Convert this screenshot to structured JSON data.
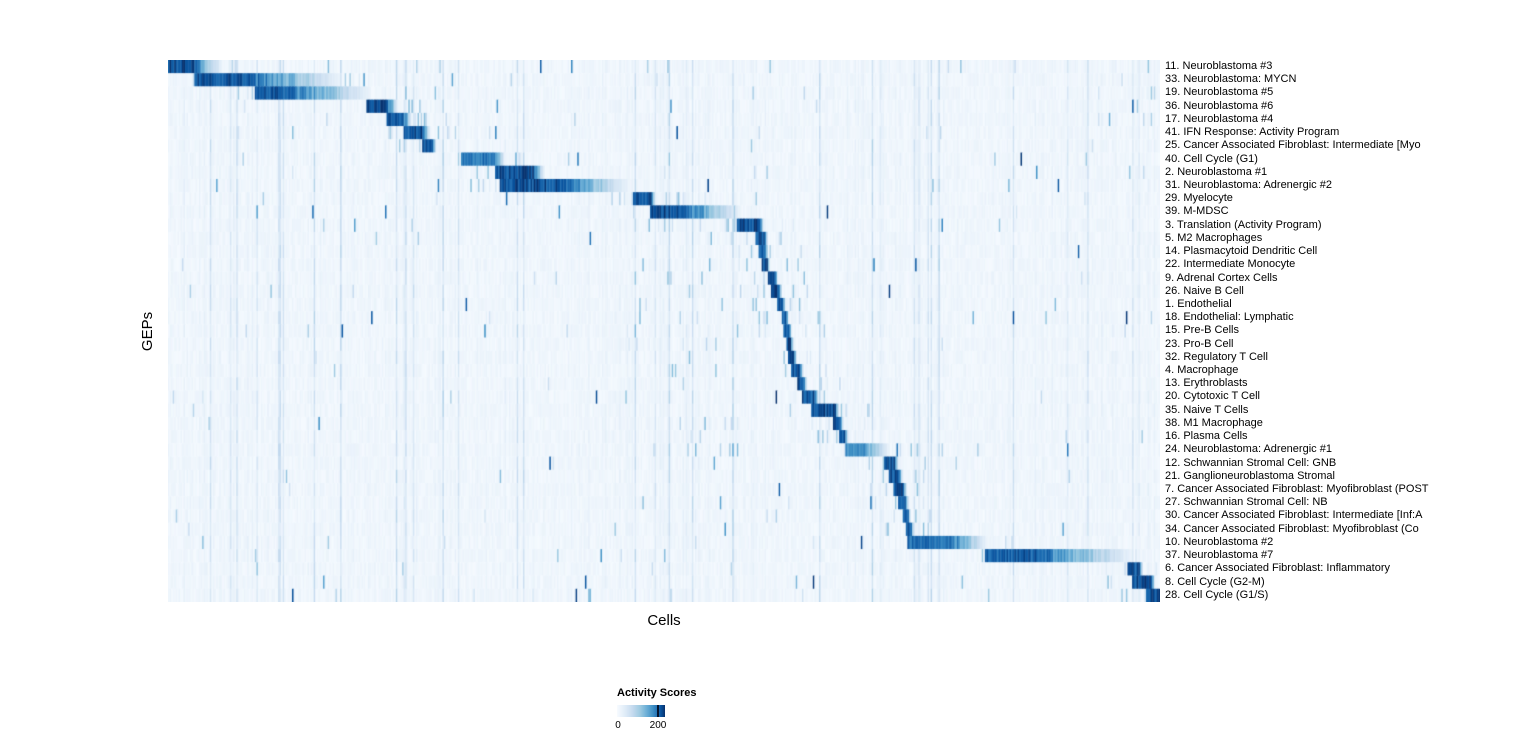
{
  "chart_data": {
    "type": "heatmap",
    "title": "",
    "xlabel": "Cells",
    "ylabel": "GEPs",
    "legend": {
      "title": "Activity Scores",
      "min_label": "0",
      "max_label": "200",
      "min": 0,
      "max": 200,
      "position": "bottom-left"
    },
    "colormap": {
      "name": "Blues",
      "low": "#f7fbff",
      "mid": "#4292c6",
      "high": "#08306b"
    },
    "grid": false,
    "n_rows": 41,
    "x_axis_ticks": "none (individual cells)",
    "rows": [
      {
        "label": "11. Neuroblastoma #3",
        "start": 0.0,
        "dark": 0.027,
        "tail": 0.055,
        "peak": 1.0,
        "noise": 2
      },
      {
        "label": "33. Neuroblastoma: MYCN",
        "start": 0.027,
        "dark": 0.088,
        "tail": 0.175,
        "peak": 1.0,
        "noise": 1
      },
      {
        "label": "19. Neuroblastoma #5",
        "start": 0.088,
        "dark": 0.128,
        "tail": 0.205,
        "peak": 0.95,
        "noise": 1
      },
      {
        "label": "36. Neuroblastoma #6",
        "start": 0.2,
        "dark": 0.222,
        "tail": 0.232,
        "peak": 1.0,
        "noise": 1
      },
      {
        "label": "17. Neuroblastoma #4",
        "start": 0.22,
        "dark": 0.238,
        "tail": 0.246,
        "peak": 0.95,
        "noise": 1
      },
      {
        "label": "41. IFN Response: Activity Program",
        "start": 0.238,
        "dark": 0.258,
        "tail": 0.264,
        "peak": 1.0,
        "noise": 2.5
      },
      {
        "label": "25. Cancer Associated Fibroblast: Intermediate [Myo",
        "start": 0.257,
        "dark": 0.267,
        "tail": 0.271,
        "peak": 1.0,
        "noise": 1
      },
      {
        "label": "40. Cell Cycle (G1)",
        "start": 0.296,
        "dark": 0.33,
        "tail": 0.34,
        "peak": 0.85,
        "noise": 3
      },
      {
        "label": "2. Neuroblastoma #1",
        "start": 0.33,
        "dark": 0.368,
        "tail": 0.38,
        "peak": 1.0,
        "noise": 1
      },
      {
        "label": "31. Neuroblastoma: Adrenergic #2",
        "start": 0.335,
        "dark": 0.4,
        "tail": 0.466,
        "peak": 1.0,
        "noise": 1
      },
      {
        "label": "29. Myelocyte",
        "start": 0.468,
        "dark": 0.487,
        "tail": 0.492,
        "peak": 1.0,
        "noise": 1
      },
      {
        "label": "39. M-MDSC",
        "start": 0.486,
        "dark": 0.524,
        "tail": 0.578,
        "peak": 1.0,
        "noise": 1.5
      },
      {
        "label": "3. Translation (Activity Program)",
        "start": 0.574,
        "dark": 0.597,
        "tail": 0.601,
        "peak": 1.0,
        "noise": 2.5
      },
      {
        "label": "5. M2 Macrophages",
        "start": 0.592,
        "dark": 0.602,
        "tail": 0.605,
        "peak": 1.0,
        "noise": 1
      },
      {
        "label": "14. Plasmacytoid Dendritic Cell",
        "start": 0.596,
        "dark": 0.602,
        "tail": 0.605,
        "peak": 1.0,
        "noise": 1
      },
      {
        "label": "22. Intermediate Monocyte",
        "start": 0.598,
        "dark": 0.604,
        "tail": 0.607,
        "peak": 1.0,
        "noise": 1
      },
      {
        "label": "9. Adrenal Cortex Cells",
        "start": 0.604,
        "dark": 0.612,
        "tail": 0.615,
        "peak": 1.0,
        "noise": 1
      },
      {
        "label": "26. Naive B Cell",
        "start": 0.608,
        "dark": 0.616,
        "tail": 0.619,
        "peak": 1.0,
        "noise": 1
      },
      {
        "label": "1. Endothelial",
        "start": 0.614,
        "dark": 0.62,
        "tail": 0.623,
        "peak": 1.0,
        "noise": 1
      },
      {
        "label": "18. Endothelial: Lymphatic",
        "start": 0.618,
        "dark": 0.623,
        "tail": 0.626,
        "peak": 1.0,
        "noise": 1
      },
      {
        "label": "15. Pre-B Cells",
        "start": 0.621,
        "dark": 0.626,
        "tail": 0.629,
        "peak": 1.0,
        "noise": 1
      },
      {
        "label": "23. Pro-B Cell",
        "start": 0.623,
        "dark": 0.628,
        "tail": 0.631,
        "peak": 1.0,
        "noise": 1
      },
      {
        "label": "32. Regulatory T Cell",
        "start": 0.625,
        "dark": 0.631,
        "tail": 0.634,
        "peak": 1.0,
        "noise": 1
      },
      {
        "label": "4. Macrophage",
        "start": 0.628,
        "dark": 0.637,
        "tail": 0.641,
        "peak": 1.0,
        "noise": 1
      },
      {
        "label": "13. Erythroblasts",
        "start": 0.634,
        "dark": 0.641,
        "tail": 0.644,
        "peak": 1.0,
        "noise": 1
      },
      {
        "label": "20. Cytotoxic T Cell",
        "start": 0.639,
        "dark": 0.652,
        "tail": 0.656,
        "peak": 1.0,
        "noise": 1
      },
      {
        "label": "35. Naive T Cells",
        "start": 0.649,
        "dark": 0.673,
        "tail": 0.677,
        "peak": 1.0,
        "noise": 1
      },
      {
        "label": "38. M1 Macrophage",
        "start": 0.67,
        "dark": 0.678,
        "tail": 0.681,
        "peak": 1.0,
        "noise": 1
      },
      {
        "label": "16. Plasma Cells",
        "start": 0.676,
        "dark": 0.683,
        "tail": 0.686,
        "peak": 1.0,
        "noise": 1
      },
      {
        "label": "24. Neuroblastoma: Adrenergic #1",
        "start": 0.683,
        "dark": 0.702,
        "tail": 0.728,
        "peak": 0.75,
        "noise": 1
      },
      {
        "label": "12. Schwannian Stromal Cell: GNB",
        "start": 0.722,
        "dark": 0.733,
        "tail": 0.737,
        "peak": 1.0,
        "noise": 1
      },
      {
        "label": "21. Ganglioneuroblastoma Stromal",
        "start": 0.726,
        "dark": 0.737,
        "tail": 0.741,
        "peak": 1.0,
        "noise": 1
      },
      {
        "label": "7. Cancer Associated Fibroblast: Myofibroblast (POST",
        "start": 0.732,
        "dark": 0.742,
        "tail": 0.745,
        "peak": 1.0,
        "noise": 1
      },
      {
        "label": "27. Schwannian Stromal Cell: NB",
        "start": 0.736,
        "dark": 0.744,
        "tail": 0.747,
        "peak": 1.0,
        "noise": 1
      },
      {
        "label": "30. Cancer Associated Fibroblast: Intermediate [Inf:A",
        "start": 0.74,
        "dark": 0.746,
        "tail": 0.749,
        "peak": 1.0,
        "noise": 1
      },
      {
        "label": "34. Cancer Associated Fibroblast: Myofibroblast (Co",
        "start": 0.743,
        "dark": 0.749,
        "tail": 0.752,
        "peak": 1.0,
        "noise": 1
      },
      {
        "label": "10. Neuroblastoma #2",
        "start": 0.746,
        "dark": 0.792,
        "tail": 0.826,
        "peak": 0.9,
        "noise": 1.5
      },
      {
        "label": "37. Neuroblastoma #7",
        "start": 0.824,
        "dark": 0.885,
        "tail": 0.974,
        "peak": 0.95,
        "noise": 1.5
      },
      {
        "label": "6. Cancer Associated Fibroblast: Inflammatory",
        "start": 0.967,
        "dark": 0.98,
        "tail": 0.983,
        "peak": 1.0,
        "noise": 1
      },
      {
        "label": "8. Cell Cycle (G2-M)",
        "start": 0.972,
        "dark": 0.992,
        "tail": 0.995,
        "peak": 1.0,
        "noise": 3
      },
      {
        "label": "28. Cell Cycle (G1/S)",
        "start": 0.986,
        "dark": 1.0,
        "tail": 1.0,
        "peak": 1.0,
        "noise": 3
      }
    ]
  }
}
